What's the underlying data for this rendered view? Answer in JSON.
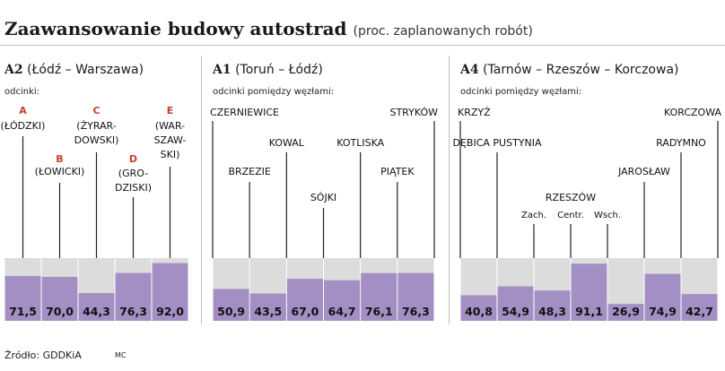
{
  "header": {
    "title": "Zaawansowanie budowy autostrad",
    "subtitle": "(proc. zaplanowanych robót)"
  },
  "source": "Źródło: GDDKiA",
  "credit": "MC",
  "colors": {
    "bar": "#a48fc4",
    "background": "#dcdcdc",
    "line": "#222222",
    "letter": "#c8402a"
  },
  "chart_data": [
    {
      "type": "bar",
      "road": "A2",
      "route": "(Łódź – Warszawa)",
      "subtitle": "odcinki:",
      "ylim": [
        0,
        100
      ],
      "categories": [
        "A (ŁÓDZKI)",
        "B (ŁOWICKI)",
        "C (ŻYRARDOWSKI)",
        "D (GRODZISKI)",
        "E (WARSZAWSKI)"
      ],
      "values": [
        71.5,
        70.0,
        44.3,
        76.3,
        92.0
      ],
      "value_labels": [
        "71,5",
        "70,0",
        "44,3",
        "76,3",
        "92,0"
      ],
      "labels": [
        {
          "letter": "A",
          "lines": [
            "(ŁÓDZKI)"
          ]
        },
        {
          "letter": "B",
          "lines": [
            "(ŁOWICKI)"
          ]
        },
        {
          "letter": "C",
          "lines": [
            "(ŻYRAR-",
            "DOWSKI)"
          ]
        },
        {
          "letter": "D",
          "lines": [
            "(GRO-",
            "DZISKI)"
          ]
        },
        {
          "letter": "E",
          "lines": [
            "(WAR-",
            "SZAW-",
            "SKI)"
          ]
        }
      ]
    },
    {
      "type": "bar",
      "road": "A1",
      "route": "(Toruń – Łódź)",
      "subtitle": "odcinki pomiędzy węzłami:",
      "ylim": [
        0,
        100
      ],
      "nodes": [
        "CZERNIEWICE",
        "BRZEZIE",
        "KOWAL",
        "SÓJKI",
        "KOTLISKA",
        "PIĄTEK",
        "STRYKÓW"
      ],
      "values": [
        50.9,
        43.5,
        67.0,
        64.7,
        76.1,
        76.3
      ],
      "value_labels": [
        "50,9",
        "43,5",
        "67,0",
        "64,7",
        "76,1",
        "76,3"
      ]
    },
    {
      "type": "bar",
      "road": "A4",
      "route": "(Tarnów – Rzeszów – Korczowa)",
      "subtitle": "odcinki pomiędzy węzłami:",
      "ylim": [
        0,
        100
      ],
      "nodes": [
        "KRZYŻ",
        "DĘBICA PUSTYNIA",
        "Zach.",
        "Centr.",
        "Wsch.",
        "JAROSŁAW",
        "RADYMNO",
        "KORCZOWA"
      ],
      "node_group_label": "RZESZÓW",
      "values": [
        40.8,
        54.9,
        48.3,
        91.1,
        26.9,
        74.9,
        42.7
      ],
      "value_labels": [
        "40,8",
        "54,9",
        "48,3",
        "91,1",
        "26,9",
        "74,9",
        "42,7"
      ]
    }
  ]
}
